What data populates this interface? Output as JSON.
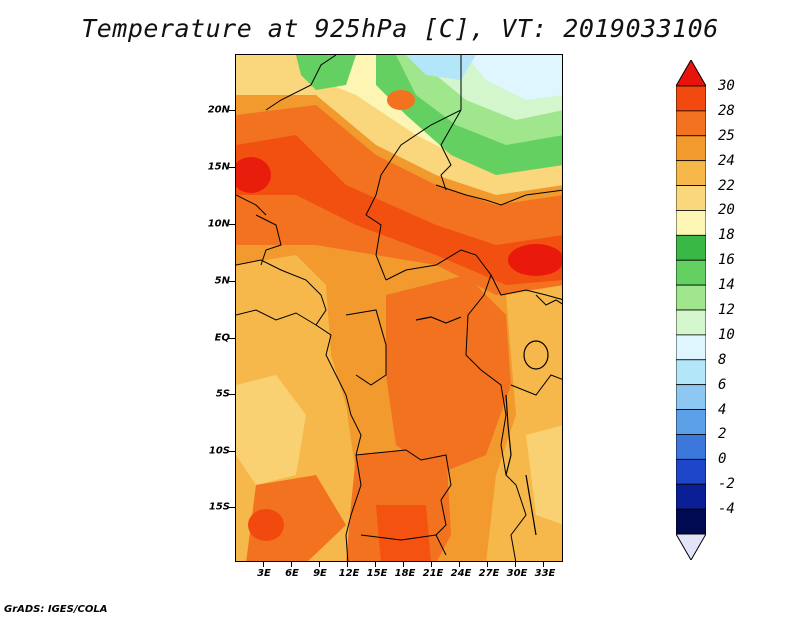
{
  "title": "Temperature at 925hPa [C], VT: 2019033106",
  "footer": "GrADS: IGES/COLA",
  "map": {
    "variable": "Temperature at 925hPa",
    "units": "C",
    "valid_time": "2019033106",
    "lat_ticks": [
      "20N",
      "15N",
      "10N",
      "5N",
      "EQ",
      "5S",
      "10S",
      "15S"
    ],
    "lon_ticks": [
      "3E",
      "6E",
      "9E",
      "12E",
      "15E",
      "18E",
      "21E",
      "24E",
      "27E",
      "30E",
      "33E"
    ]
  },
  "colorbar": {
    "levels": [
      "30",
      "28",
      "25",
      "24",
      "22",
      "20",
      "18",
      "16",
      "14",
      "12",
      "10",
      "8",
      "6",
      "4",
      "2",
      "0",
      "-2",
      "-4"
    ],
    "colors": [
      "#e8140c",
      "#f24a0e",
      "#f2721f",
      "#f29a2e",
      "#f6b84a",
      "#fad77c",
      "#fcf5b4",
      "#3ab845",
      "#64d062",
      "#a0e68c",
      "#d4f6cc",
      "#e0f6ff",
      "#b4e6fa",
      "#8cc8f2",
      "#5ca0e8",
      "#3c78dc",
      "#1e46c8",
      "#0a1e96",
      "#000a50",
      "#e4e4f8"
    ]
  }
}
